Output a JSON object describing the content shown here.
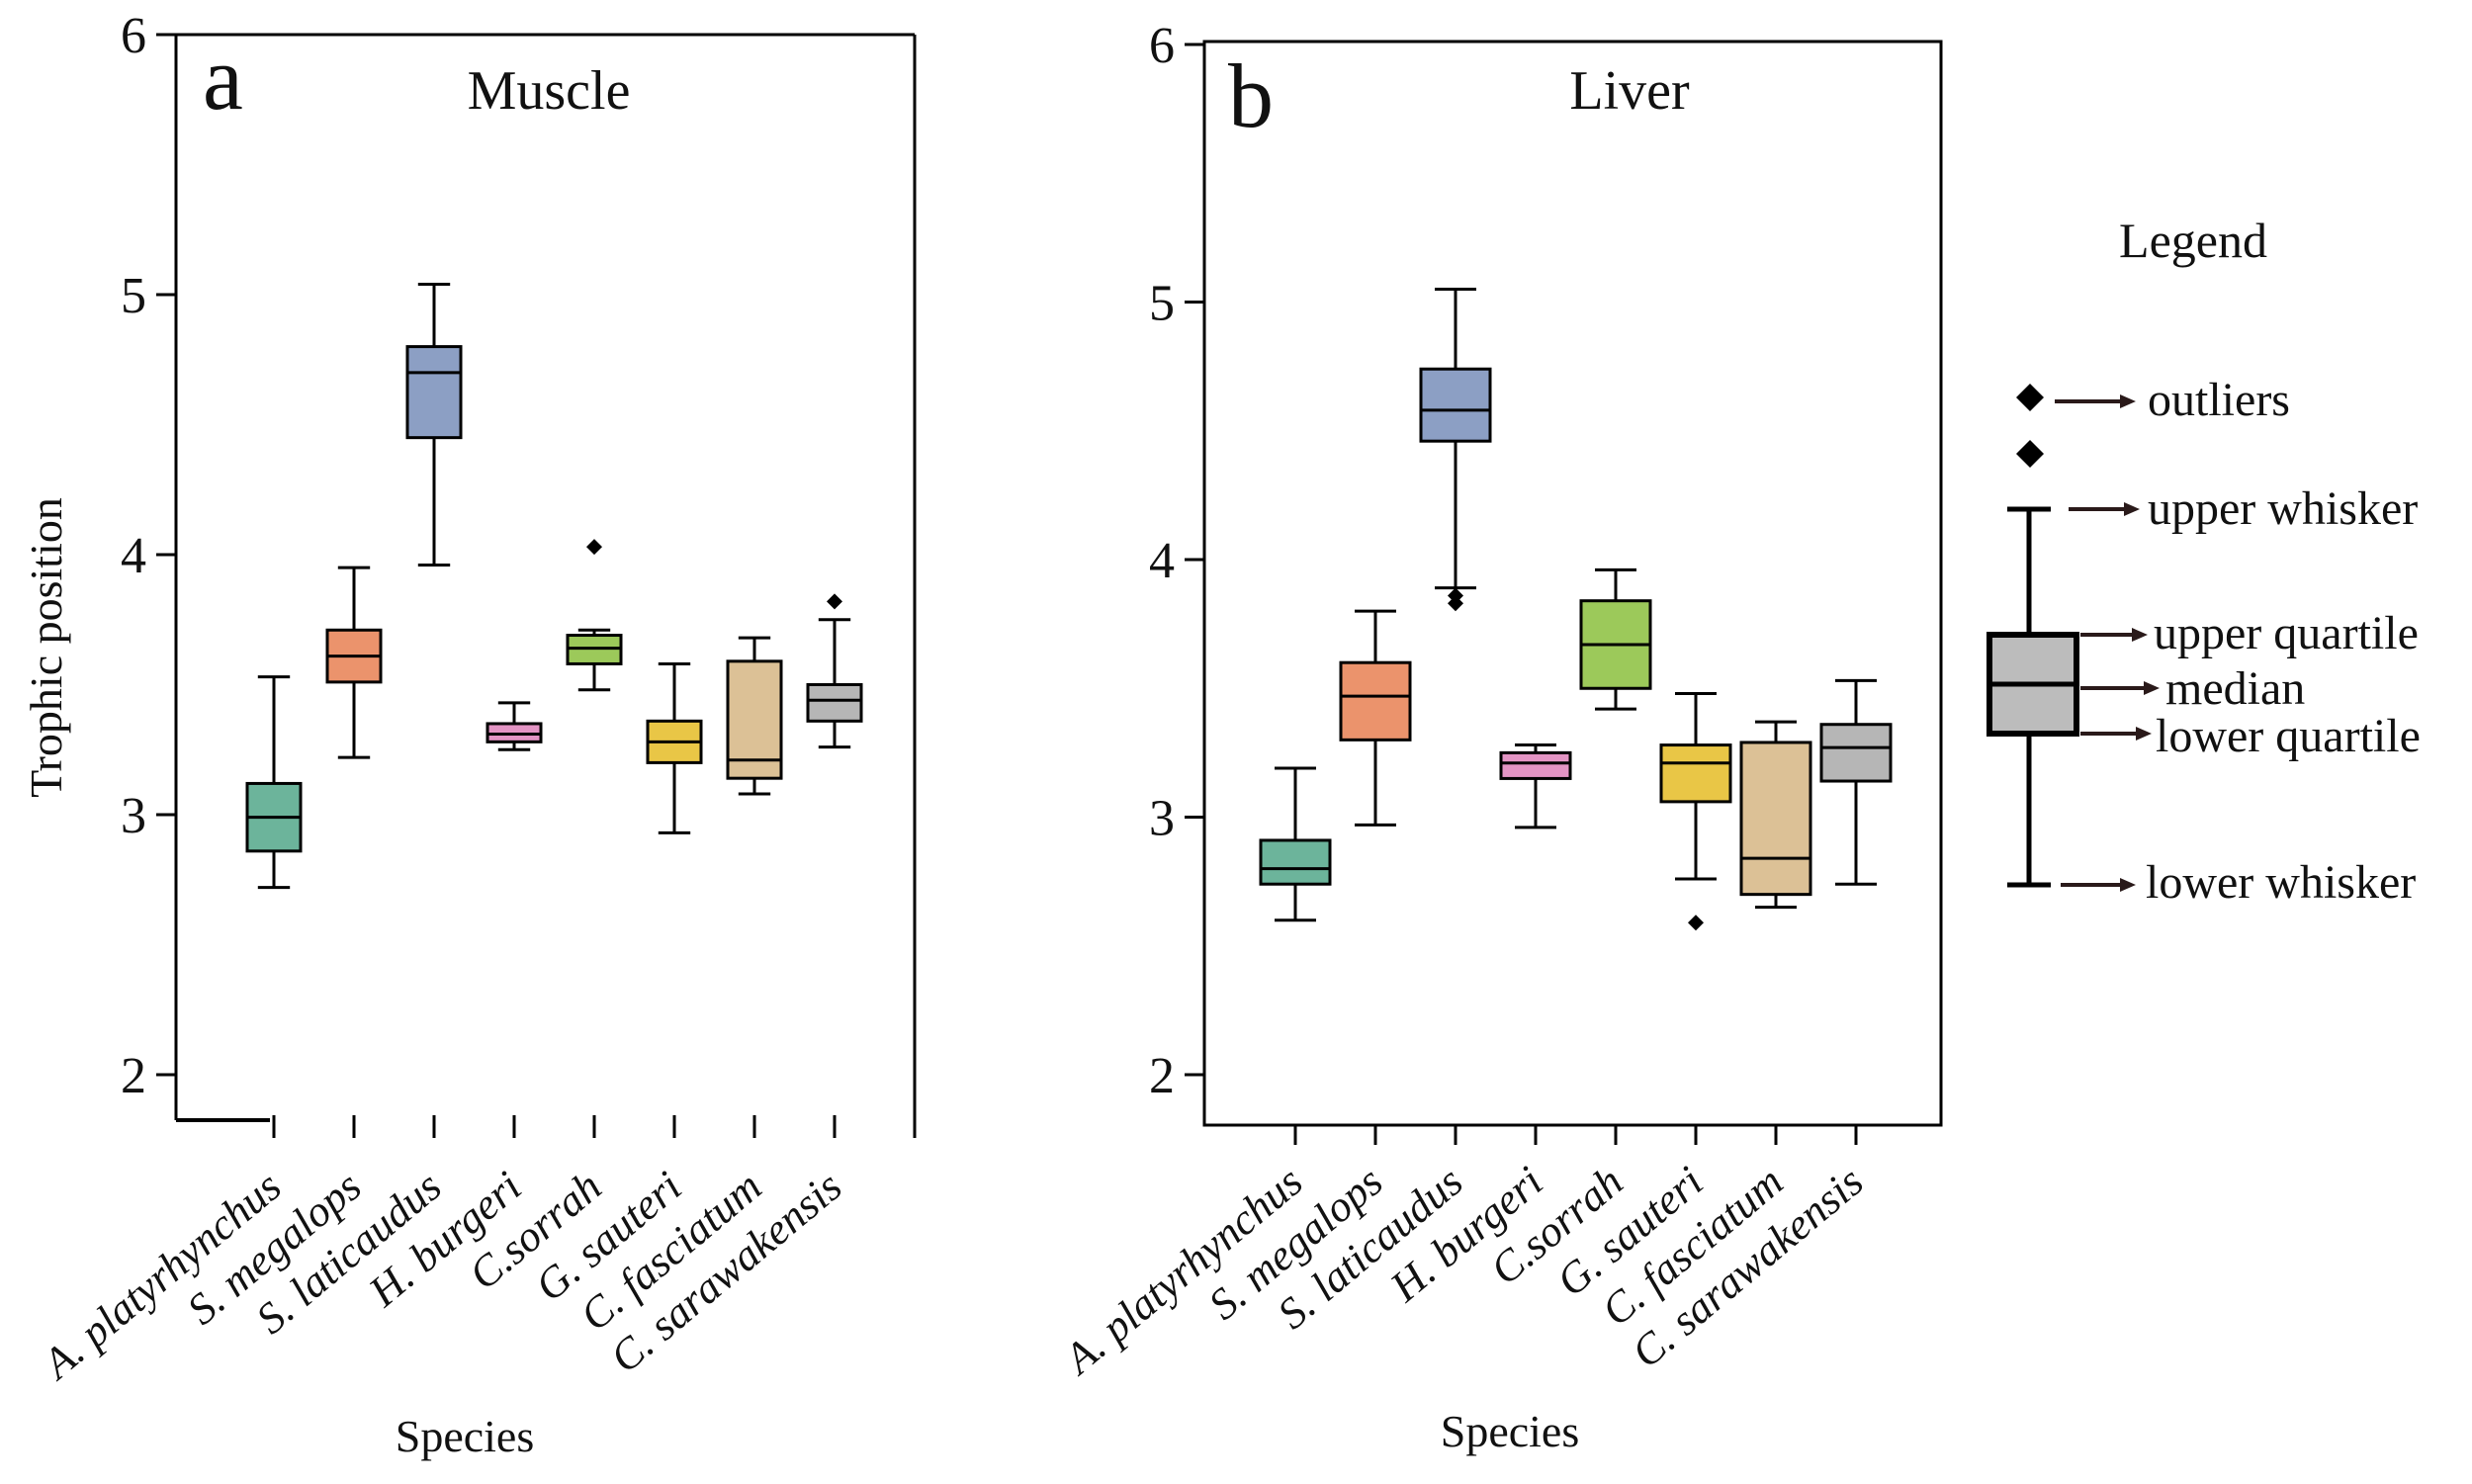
{
  "legend": {
    "title": "Legend",
    "labels": {
      "outliers": "outliers",
      "upper_whisker": "upper whisker",
      "upper_quartile": "upper quartile",
      "median": "median",
      "lower_quartile": "lower quartile",
      "lower_whisker": "lower whisker"
    }
  },
  "chart_data": [
    {
      "type": "box",
      "panel": "a",
      "title": "Muscle",
      "xlabel": "Species",
      "ylabel": "Trophic position",
      "ylim": [
        1.8,
        6.0
      ],
      "yticks": [
        2,
        3,
        4,
        5,
        6
      ],
      "categories": [
        "A. platyrhynchus",
        "S. megalops",
        "S. laticaudus",
        "H. burgeri",
        "C.sorrah",
        "G. sauteri",
        "C. fasciatum",
        "C. sarawakensis"
      ],
      "colors": [
        "#6cb49b",
        "#eb936c",
        "#8c9fc4",
        "#e394c4",
        "#9cc95a",
        "#e9c646",
        "#dcc196",
        "#b6b6b6"
      ],
      "boxes": [
        {
          "whisker_low": 2.72,
          "q1": 2.86,
          "median": 2.99,
          "q3": 3.12,
          "whisker_high": 3.53,
          "outliers": []
        },
        {
          "whisker_low": 3.22,
          "q1": 3.51,
          "median": 3.61,
          "q3": 3.71,
          "whisker_high": 3.95,
          "outliers": []
        },
        {
          "whisker_low": 3.96,
          "q1": 4.45,
          "median": 4.7,
          "q3": 4.8,
          "whisker_high": 5.04,
          "outliers": []
        },
        {
          "whisker_low": 3.25,
          "q1": 3.28,
          "median": 3.31,
          "q3": 3.35,
          "whisker_high": 3.43,
          "outliers": []
        },
        {
          "whisker_low": 3.48,
          "q1": 3.58,
          "median": 3.64,
          "q3": 3.69,
          "whisker_high": 3.71,
          "outliers": [
            4.03
          ]
        },
        {
          "whisker_low": 2.93,
          "q1": 3.2,
          "median": 3.28,
          "q3": 3.36,
          "whisker_high": 3.58,
          "outliers": []
        },
        {
          "whisker_low": 3.08,
          "q1": 3.14,
          "median": 3.21,
          "q3": 3.59,
          "whisker_high": 3.68,
          "outliers": []
        },
        {
          "whisker_low": 3.26,
          "q1": 3.36,
          "median": 3.44,
          "q3": 3.5,
          "whisker_high": 3.75,
          "outliers": [
            3.82
          ]
        }
      ]
    },
    {
      "type": "box",
      "panel": "b",
      "title": "Liver",
      "xlabel": "Species",
      "ylabel": "",
      "ylim": [
        1.8,
        6.0
      ],
      "yticks": [
        2,
        3,
        4,
        5,
        6
      ],
      "categories": [
        "A. platyrhynchus",
        "S. megalops",
        "S. laticaudus",
        "H. burgeri",
        "C.sorrah",
        "G. sauteri",
        "C. fasciatum",
        "C. sarawakensis"
      ],
      "colors": [
        "#6cb49b",
        "#eb936c",
        "#8c9fc4",
        "#e394c4",
        "#9cc95a",
        "#e9c646",
        "#dcc196",
        "#b6b6b6"
      ],
      "boxes": [
        {
          "whisker_low": 2.6,
          "q1": 2.74,
          "median": 2.8,
          "q3": 2.91,
          "whisker_high": 3.19,
          "outliers": []
        },
        {
          "whisker_low": 2.97,
          "q1": 3.3,
          "median": 3.47,
          "q3": 3.6,
          "whisker_high": 3.8,
          "outliers": []
        },
        {
          "whisker_low": 3.89,
          "q1": 4.46,
          "median": 4.58,
          "q3": 4.74,
          "whisker_high": 5.05,
          "outliers": [
            3.86,
            3.83
          ]
        },
        {
          "whisker_low": 2.96,
          "q1": 3.15,
          "median": 3.21,
          "q3": 3.25,
          "whisker_high": 3.28,
          "outliers": []
        },
        {
          "whisker_low": 3.42,
          "q1": 3.5,
          "median": 3.67,
          "q3": 3.84,
          "whisker_high": 3.96,
          "outliers": []
        },
        {
          "whisker_low": 2.76,
          "q1": 3.06,
          "median": 3.21,
          "q3": 3.28,
          "whisker_high": 3.48,
          "outliers": [
            2.59
          ]
        },
        {
          "whisker_low": 2.65,
          "q1": 2.7,
          "median": 2.84,
          "q3": 3.29,
          "whisker_high": 3.37,
          "outliers": []
        },
        {
          "whisker_low": 2.74,
          "q1": 3.14,
          "median": 3.27,
          "q3": 3.36,
          "whisker_high": 3.53,
          "outliers": []
        }
      ]
    }
  ]
}
